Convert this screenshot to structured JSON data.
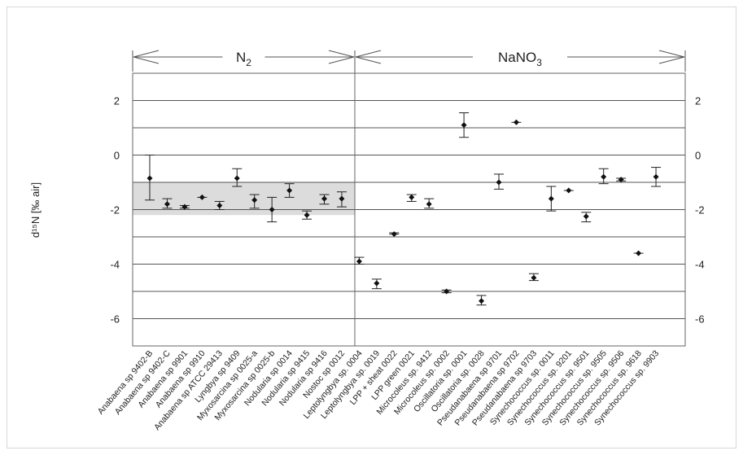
{
  "chart_data": {
    "type": "scatter",
    "ylabel": "d¹⁵N [‰ air]",
    "ylim": [
      -7,
      3
    ],
    "yticks": [
      "2",
      "0",
      "-2",
      "-4",
      "-6"
    ],
    "grid": "horizontal at every unit",
    "band": {
      "low": -2.2,
      "high": -1.0,
      "note": "shaded range over N2 group"
    },
    "groups": [
      {
        "label_main": "N",
        "label_sub": "2",
        "label_tail": "",
        "first": 0,
        "last": 11
      },
      {
        "label_main": "NaNO",
        "label_sub": "3",
        "label_tail": "",
        "first": 12,
        "last": 30
      }
    ],
    "categories": [
      "Anabaena sp 9402-B",
      "Anabaena sp 9402-C",
      "Anabaena sp 9901",
      "Anabaena sp 9910",
      "Anabaena sp ATCC 29413",
      "Lyngbya sp 9409",
      "Myxosarcina sp 0025-a",
      "Myxosarcina sp 0025-b",
      "Nodularia sp 0014",
      "Nodularia sp 9415",
      "Nodularia sp 9416",
      "Nostoc sp 0012",
      "Leptolyngbya sp. 0004",
      "Leptolyngbya sp. 0019",
      "LPP + sheat 0022",
      "LPP green 0021",
      "Microcoleus sp. 9412",
      "Microcoleus sp. 0002",
      "Oscillatoria sp. 0001",
      "Oscillatoria sp. 0028",
      "Pseudanabaena sp 9701",
      "Pseudanabaena sp 9702",
      "Pseudanabaena sp 9703",
      "Synechococcus sp. 0011",
      "Synechococcus sp. 9201",
      "Synechococcus sp. 9501",
      "Synechococcus sp. 9505",
      "Synechococcus sp. 9506",
      "Synechococcus sp. 9618",
      "Synechococcus sp. 9903"
    ],
    "values": [
      -0.85,
      -1.8,
      -1.9,
      -1.55,
      -1.85,
      -0.85,
      -1.65,
      -2.0,
      -1.3,
      -2.2,
      -1.6,
      -1.6,
      -3.9,
      -4.7,
      -2.9,
      -1.55,
      -1.8,
      -5.0,
      1.1,
      -5.35,
      -1.0,
      1.2,
      -4.5,
      -1.6,
      -1.3,
      -2.25,
      -0.8,
      -0.9,
      -3.6,
      -0.8
    ],
    "err_low": [
      -1.65,
      -1.95,
      -1.95,
      -1.55,
      -2.0,
      -1.15,
      -1.95,
      -2.45,
      -1.55,
      -2.35,
      -1.8,
      -1.9,
      -4.0,
      -4.9,
      -2.9,
      -1.7,
      -1.95,
      -5.05,
      0.65,
      -5.5,
      -1.25,
      1.2,
      -4.6,
      -2.05,
      -1.3,
      -2.45,
      -1.05,
      -0.95,
      -3.6,
      -1.15
    ],
    "err_high": [
      0.0,
      -1.6,
      -1.85,
      -1.55,
      -1.7,
      -0.5,
      -1.45,
      -1.55,
      -1.05,
      -2.05,
      -1.45,
      -1.35,
      -3.75,
      -4.55,
      -2.85,
      -1.45,
      -1.6,
      -4.95,
      1.55,
      -5.15,
      -0.7,
      1.2,
      -4.35,
      -1.15,
      -1.3,
      -2.1,
      -0.5,
      -0.85,
      -3.6,
      -0.45
    ]
  }
}
